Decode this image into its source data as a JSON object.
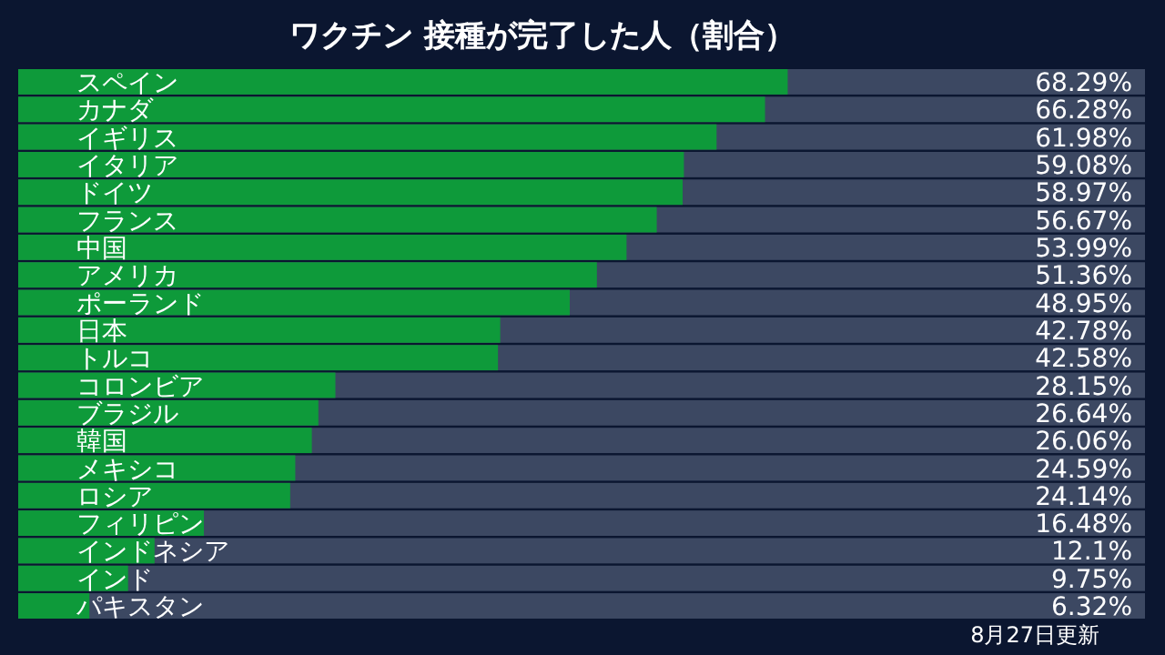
{
  "chart_data": {
    "type": "bar",
    "orientation": "horizontal",
    "title": "ワクチン 接種が完了した人（割合）",
    "categories": [
      "スペイン",
      "カナダ",
      "イギリス",
      "イタリア",
      "ドイツ",
      "フランス",
      "中国",
      "アメリカ",
      "ポーランド",
      "日本",
      "トルコ",
      "コロンビア",
      "ブラジル",
      "韓国",
      "メキシコ",
      "ロシア",
      "フィリピン",
      "インドネシア",
      "インド",
      "パキスタン"
    ],
    "values": [
      68.29,
      66.28,
      61.98,
      59.08,
      58.97,
      56.67,
      53.99,
      51.36,
      48.95,
      42.78,
      42.58,
      28.15,
      26.64,
      26.06,
      24.59,
      24.14,
      16.48,
      12.1,
      9.75,
      6.32
    ],
    "value_labels": [
      "68.29%",
      "66.28%",
      "61.98%",
      "59.08%",
      "58.97%",
      "56.67%",
      "53.99%",
      "51.36%",
      "48.95%",
      "42.78%",
      "42.58%",
      "28.15%",
      "26.64%",
      "26.06%",
      "24.59%",
      "24.14%",
      "16.48%",
      "12.1%",
      "9.75%",
      "6.32%"
    ],
    "color": "#0e9a3a",
    "xlim": [
      0,
      100
    ],
    "annotations": [
      "8月27日更新"
    ]
  }
}
